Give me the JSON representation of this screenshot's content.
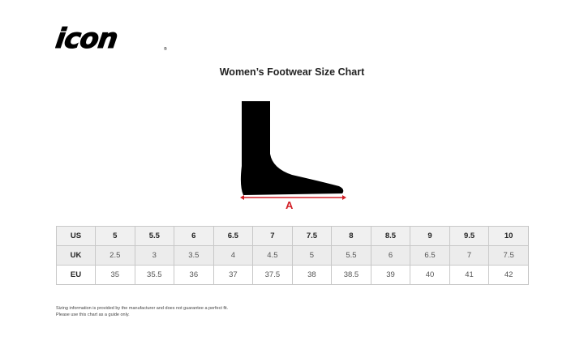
{
  "brand": {
    "logo_text": "icon"
  },
  "title": "Women’s Footwear Size Chart",
  "diagram": {
    "measure_label": "A",
    "accent_color": "#d21f26"
  },
  "table": {
    "rows": [
      {
        "label": "US",
        "values": [
          "5",
          "5.5",
          "6",
          "6.5",
          "7",
          "7.5",
          "8",
          "8.5",
          "9",
          "9.5",
          "10"
        ]
      },
      {
        "label": "UK",
        "values": [
          "2.5",
          "3",
          "3.5",
          "4",
          "4.5",
          "5",
          "5.5",
          "6",
          "6.5",
          "7",
          "7.5"
        ]
      },
      {
        "label": "EU",
        "values": [
          "35",
          "35.5",
          "36",
          "37",
          "37.5",
          "38",
          "38.5",
          "39",
          "40",
          "41",
          "42"
        ]
      }
    ]
  },
  "note": {
    "line1": "Sizing information is provided by the manufacturer and does not guarantee a perfect fit.",
    "line2": "Please use this chart as a guide only."
  }
}
